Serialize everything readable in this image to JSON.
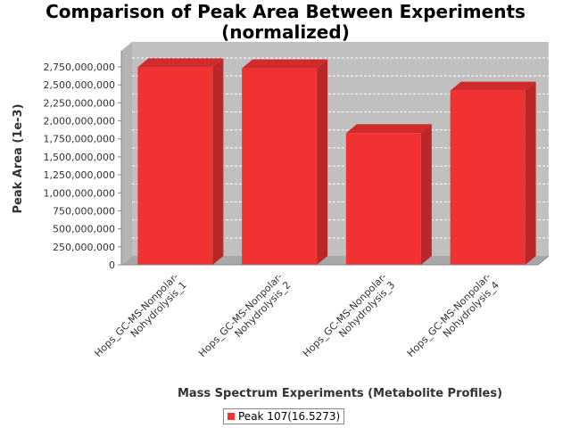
{
  "chart_data": {
    "type": "bar",
    "title_lines": [
      "Comparison of Peak Area Between Experiments",
      "(normalized)"
    ],
    "xlabel": "Mass Spectrum Experiments (Metabolite Profiles)",
    "ylabel": "Peak Area (1e-3)",
    "categories": [
      [
        "Hops_GC-MS-Nonpolar-",
        "Nohydrolysis_1"
      ],
      [
        "Hops_GC-MS-Nonpolar-",
        "Nohydrolysis_2"
      ],
      [
        "Hops_GC-MS-Nonpolar-",
        "Nohydrolysis_3"
      ],
      [
        "Hops_GC-MS-Nonpolar-",
        "Nohydrolysis_4"
      ]
    ],
    "series": [
      {
        "name": "Peak 107(16.5273)",
        "values": [
          2745000000,
          2730000000,
          1830000000,
          2420000000
        ]
      }
    ],
    "ylim": [
      0,
      2750000000
    ],
    "yticks": [
      0,
      250000000,
      500000000,
      750000000,
      1000000000,
      1250000000,
      1500000000,
      1750000000,
      2000000000,
      2250000000,
      2500000000,
      2750000000
    ],
    "ytick_labels": [
      "0",
      "250,000,000",
      "500,000,000",
      "750,000,000",
      "1,000,000,000",
      "1,250,000,000",
      "1,500,000,000",
      "1,750,000,000",
      "2,000,000,000",
      "2,250,000,000",
      "2,500,000,000",
      "2,750,000,000"
    ],
    "grid": true,
    "legend_position": "bottom",
    "colors": {
      "bar_front": "#f03232",
      "bar_side": "#b82828",
      "bar_top": "#d02a2a",
      "plot_back": "#c0c0c0",
      "plot_floor": "#a8a8a8",
      "grid": "#ffffff"
    }
  }
}
